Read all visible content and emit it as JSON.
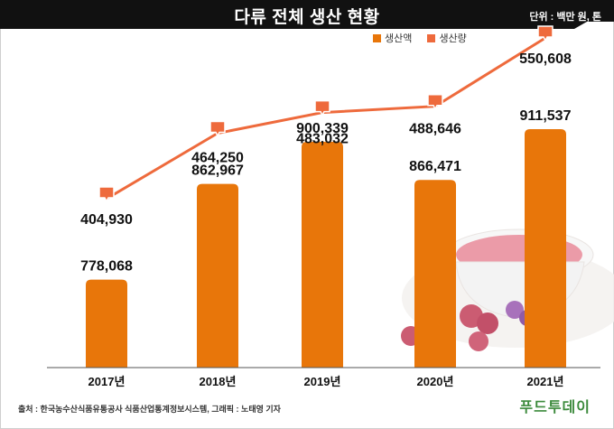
{
  "header": {
    "title": "다류 전체 생산 현황",
    "unit": "단위 : 백만 원, 톤"
  },
  "legend": {
    "bar_label": "생산액",
    "line_label": "생산량"
  },
  "footer": {
    "source": "출처 : 한국농수산식품유통공사 식품산업통계정보시스템, 그래픽 : 노태영 기자",
    "brand": "푸드투데이"
  },
  "colors": {
    "bar": "#E8760A",
    "line": "#EE6A3C",
    "title_bg": "#111111"
  },
  "chart_data": {
    "type": "bar",
    "categories": [
      "2017년",
      "2018년",
      "2019년",
      "2020년",
      "2021년"
    ],
    "series": [
      {
        "name": "생산액",
        "type": "bar",
        "values": [
          778068,
          862967,
          900339,
          866471,
          911537
        ],
        "labels": [
          "778,068",
          "862,967",
          "900,339",
          "866,471",
          "911,537"
        ]
      },
      {
        "name": "생산량",
        "type": "line",
        "values": [
          404930,
          464250,
          483032,
          488646,
          550608
        ],
        "labels": [
          "404,930",
          "464,250",
          "483,032",
          "488,646",
          "550,608"
        ]
      }
    ],
    "legend_position": "top-right",
    "grid": false
  }
}
